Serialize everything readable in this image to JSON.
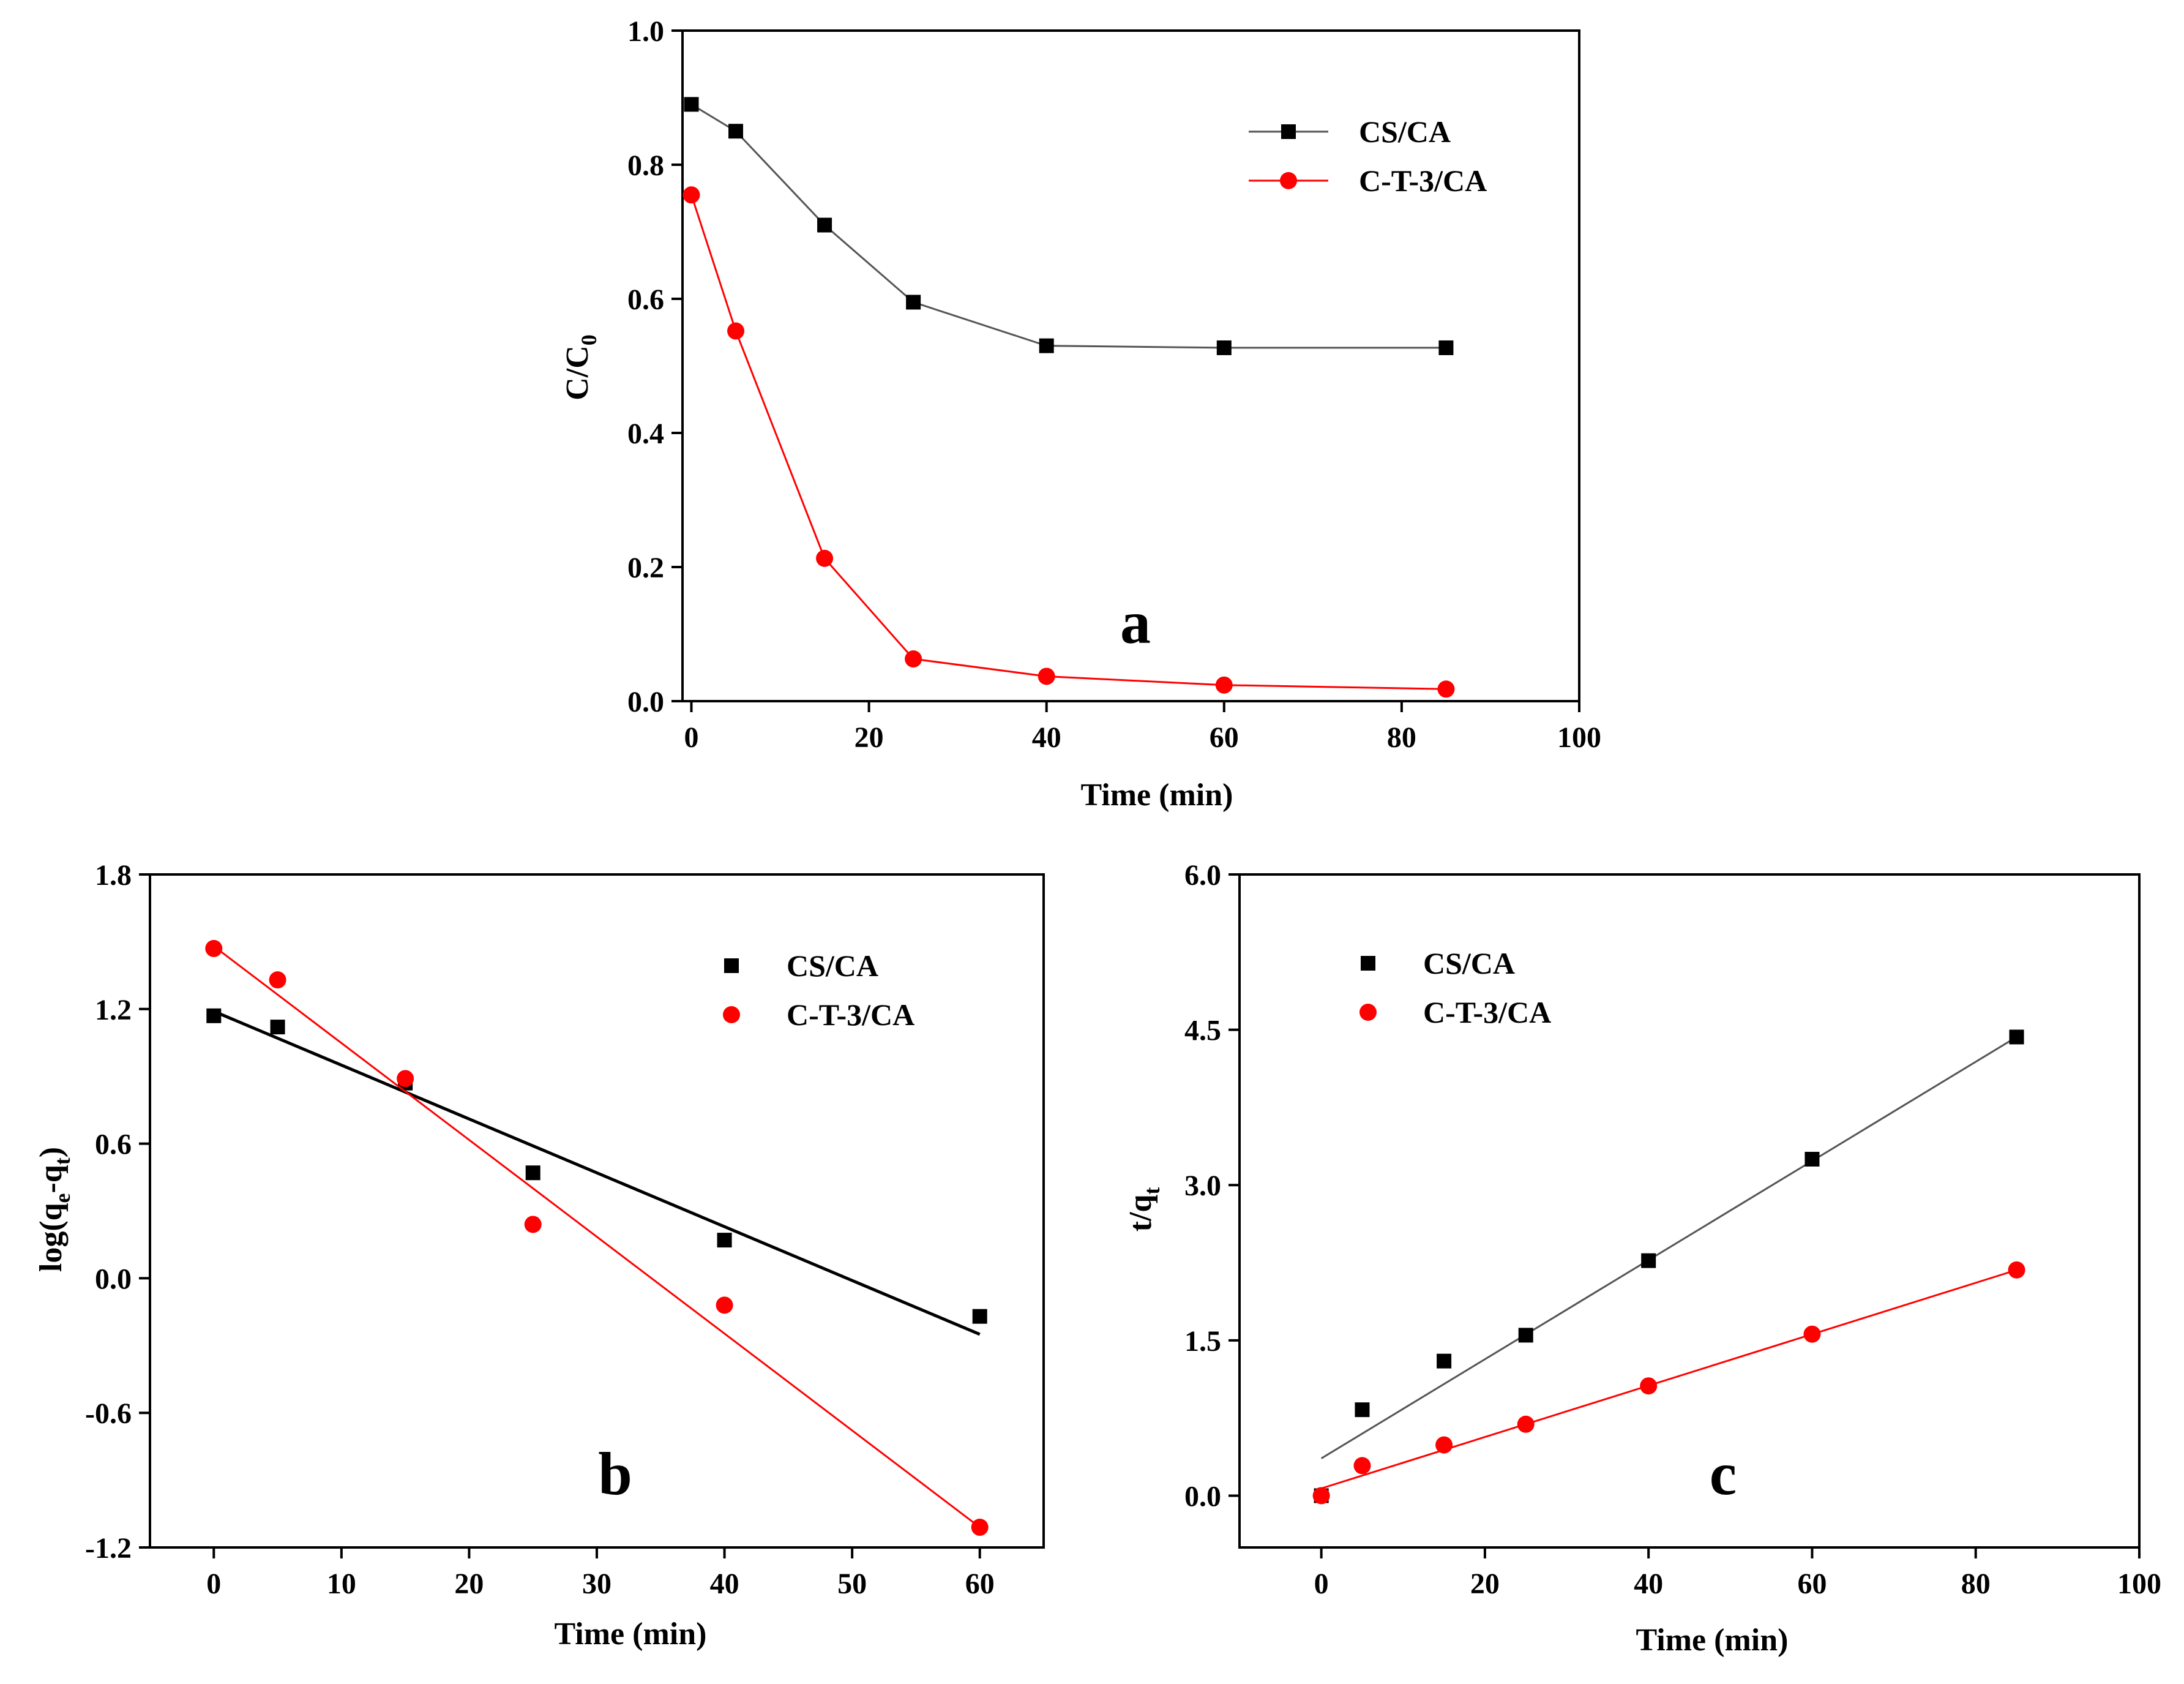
{
  "chart_data": [
    {
      "id": "a",
      "type": "line",
      "panel_label": "a",
      "xlabel": "Time (min)",
      "ylabel_main": "C/C",
      "ylabel_sub": "0",
      "xlim": [
        -1,
        100
      ],
      "ylim": [
        0,
        1.0
      ],
      "xticks": [
        0,
        20,
        40,
        60,
        80,
        100
      ],
      "xtick_labels": [
        "0",
        "20",
        "40",
        "60",
        "80",
        "100"
      ],
      "yticks": [
        0,
        0.2,
        0.4,
        0.6,
        0.8,
        1.0
      ],
      "ytick_labels": [
        "0.0",
        "0.2",
        "0.4",
        "0.6",
        "0.8",
        "1.0"
      ],
      "legend": "top-right",
      "series": [
        {
          "name": "CS/CA",
          "marker": "square",
          "color": "#000000",
          "line_color": "#555555",
          "x": [
            0,
            5,
            15,
            25,
            40,
            60,
            85
          ],
          "y": [
            0.89,
            0.85,
            0.71,
            0.595,
            0.53,
            0.527,
            0.527
          ]
        },
        {
          "name": "C-T-3/CA",
          "marker": "circle",
          "color": "#ff0000",
          "line_color": "#ff0000",
          "x": [
            0,
            5,
            15,
            25,
            40,
            60,
            85
          ],
          "y": [
            0.755,
            0.552,
            0.213,
            0.063,
            0.037,
            0.024,
            0.018
          ]
        }
      ]
    },
    {
      "id": "b",
      "type": "scatter",
      "panel_label": "b",
      "xlabel": "Time (min)",
      "ylabel_main": "log(q",
      "ylabel_sub1": "e",
      "ylabel_mid": "-q",
      "ylabel_sub2": "t",
      "ylabel_end": ")",
      "xlim": [
        -5,
        65
      ],
      "ylim": [
        -1.2,
        1.8
      ],
      "xticks": [
        0,
        10,
        20,
        30,
        40,
        50,
        60
      ],
      "xtick_labels": [
        "0",
        "10",
        "20",
        "30",
        "40",
        "50",
        "60"
      ],
      "yticks": [
        -1.2,
        -0.6,
        0.0,
        0.6,
        1.2,
        1.8
      ],
      "ytick_labels": [
        "-1.2",
        "-0.6",
        "0.0",
        "0.6",
        "1.2",
        "1.8"
      ],
      "legend": "top-right",
      "series": [
        {
          "name": "CS/CA",
          "marker": "square",
          "color": "#000000",
          "line_color": "#000000",
          "x": [
            0,
            5,
            15,
            25,
            40,
            60
          ],
          "y": [
            1.17,
            1.12,
            0.87,
            0.47,
            0.17,
            -0.17
          ],
          "fit": {
            "x": [
              0,
              60
            ],
            "y": [
              1.19,
              -0.25
            ]
          }
        },
        {
          "name": "C-T-3/CA",
          "marker": "circle",
          "color": "#ff0000",
          "line_color": "#ff0000",
          "x": [
            0,
            5,
            15,
            25,
            40,
            60
          ],
          "y": [
            1.47,
            1.33,
            0.89,
            0.24,
            -0.12,
            -1.11
          ],
          "fit": {
            "x": [
              0,
              60
            ],
            "y": [
              1.48,
              -1.11
            ]
          }
        }
      ]
    },
    {
      "id": "c",
      "type": "scatter",
      "panel_label": "c",
      "xlabel": "Time (min)",
      "ylabel_main": "t/q",
      "ylabel_sub": "t",
      "xlim": [
        -10,
        100
      ],
      "ylim": [
        -0.5,
        6.0
      ],
      "xticks": [
        0,
        20,
        40,
        60,
        80,
        100
      ],
      "xtick_labels": [
        "0",
        "20",
        "40",
        "60",
        "80",
        "100"
      ],
      "yticks": [
        0.0,
        1.5,
        3.0,
        4.5,
        6.0
      ],
      "ytick_labels": [
        "0.0",
        "1.5",
        "3.0",
        "4.5",
        "6.0"
      ],
      "legend": "top-left",
      "series": [
        {
          "name": "CS/CA",
          "marker": "square",
          "color": "#000000",
          "line_color": "#555555",
          "x": [
            0,
            5,
            15,
            25,
            40,
            60,
            85
          ],
          "y": [
            0.0,
            0.83,
            1.3,
            1.55,
            2.27,
            3.25,
            4.43
          ],
          "fit": {
            "x": [
              0,
              85
            ],
            "y": [
              0.36,
              4.43
            ]
          }
        },
        {
          "name": "C-T-3/CA",
          "marker": "circle",
          "color": "#ff0000",
          "line_color": "#ff0000",
          "x": [
            0,
            5,
            15,
            25,
            40,
            60,
            85
          ],
          "y": [
            0.0,
            0.29,
            0.49,
            0.69,
            1.06,
            1.56,
            2.18
          ],
          "fit": {
            "x": [
              0,
              85
            ],
            "y": [
              0.07,
              2.18
            ]
          }
        }
      ]
    }
  ]
}
